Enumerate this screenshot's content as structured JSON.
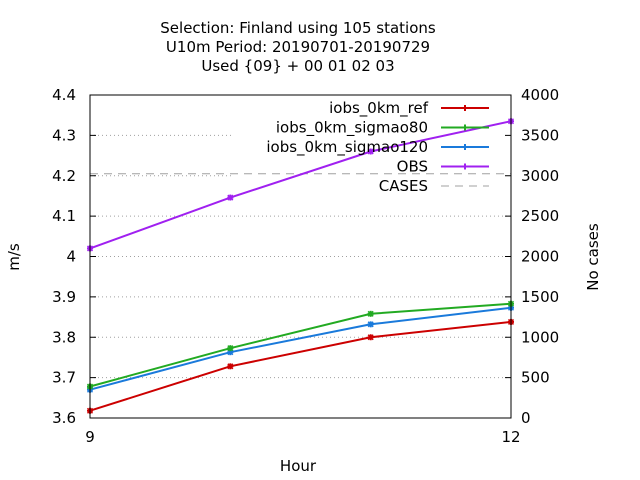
{
  "chart_data": {
    "type": "line",
    "title_lines": [
      "Selection: Finland using   105 stations",
      "U10m   Period: 20190701-20190729",
      "Used {09} + 00 01 02 03"
    ],
    "xlabel": "Hour",
    "ylabel": "m/s",
    "y2label": "No cases",
    "x": [
      9,
      10,
      11,
      12
    ],
    "xlim": [
      9,
      12
    ],
    "xticks": [
      9,
      12
    ],
    "ylim": [
      3.6,
      4.4
    ],
    "yticks": [
      "3.6",
      "3.7",
      "3.8",
      "3.9",
      "4",
      "4.1",
      "4.2",
      "4.3",
      "4.4"
    ],
    "y2lim": [
      0,
      4000
    ],
    "y2ticks": [
      "0",
      "500",
      "1000",
      "1500",
      "2000",
      "2500",
      "3000",
      "3500",
      "4000"
    ],
    "grid": true,
    "legend_position": "top-right",
    "series": [
      {
        "name": "iobs_0km_ref",
        "color": "#cc0000",
        "axis": "y",
        "values": [
          3.618,
          3.728,
          3.8,
          3.838
        ]
      },
      {
        "name": "iobs_0km_sigmao80",
        "color": "#22aa22",
        "axis": "y",
        "values": [
          3.678,
          3.773,
          3.858,
          3.883
        ]
      },
      {
        "name": "iobs_0km_sigmao120",
        "color": "#1a7adb",
        "axis": "y",
        "values": [
          3.67,
          3.763,
          3.832,
          3.873
        ]
      },
      {
        "name": "OBS",
        "color": "#a020f0",
        "axis": "y",
        "values": [
          4.02,
          4.146,
          4.26,
          4.335
        ]
      },
      {
        "name": "CASES",
        "color": "#a0a0a0",
        "axis": "y2",
        "dashed": true,
        "values": [
          3025,
          3025,
          3025,
          3025
        ]
      }
    ]
  }
}
